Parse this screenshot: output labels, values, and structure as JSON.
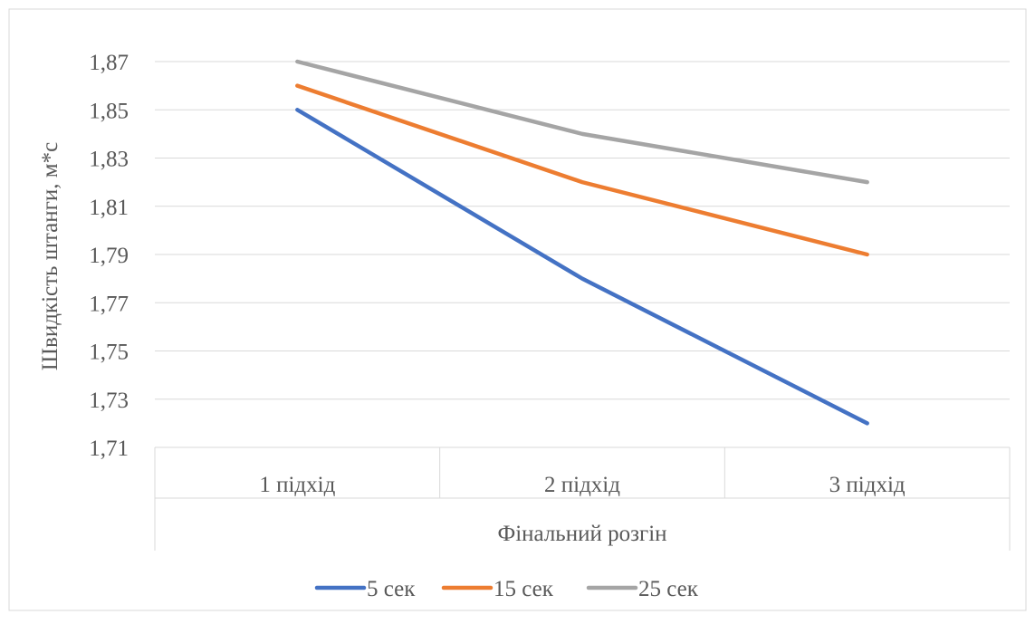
{
  "chart_data": {
    "type": "line",
    "title": "",
    "ylabel": "Швидкість штанги, м*с",
    "xlabel": "Фінальний розгін",
    "categories": [
      "1 підхід",
      "2 підхід",
      "3 підхід"
    ],
    "ylim": [
      1.71,
      1.87
    ],
    "yticks": [
      "1,71",
      "1,73",
      "1,75",
      "1,77",
      "1,79",
      "1,81",
      "1,83",
      "1,85",
      "1,87"
    ],
    "grid": true,
    "legend_position": "bottom",
    "series": [
      {
        "name": "5 сек",
        "values": [
          1.85,
          1.78,
          1.72
        ],
        "color": "#4472C4"
      },
      {
        "name": "15 сек",
        "values": [
          1.86,
          1.82,
          1.79
        ],
        "color": "#ED7D31"
      },
      {
        "name": "25 сек",
        "values": [
          1.87,
          1.84,
          1.82
        ],
        "color": "#A5A5A5"
      }
    ]
  }
}
